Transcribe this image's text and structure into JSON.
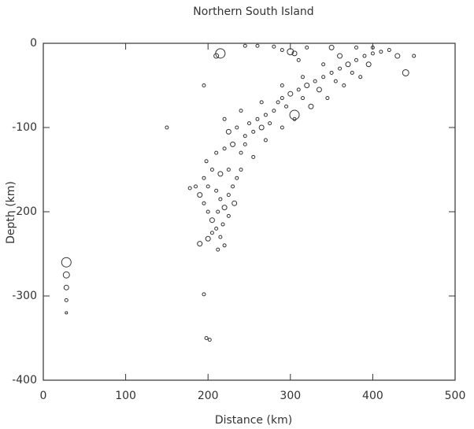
{
  "chart_data": {
    "type": "scatter",
    "title": "Northern South Island",
    "xlabel": "Distance (km)",
    "ylabel": "Depth (km)",
    "xlim": [
      0,
      500
    ],
    "ylim": [
      -400,
      0
    ],
    "xticks": [
      0,
      100,
      200,
      300,
      400,
      500
    ],
    "yticks": [
      0,
      -100,
      -200,
      -300,
      -400
    ],
    "series": [
      {
        "color": "#333333",
        "x": [
          185,
          190,
          195,
          200,
          205,
          210,
          215,
          220,
          195,
          200,
          210,
          215,
          220,
          225,
          218,
          205,
          200,
          212,
          225,
          230,
          235,
          225,
          215,
          205,
          198,
          210,
          220,
          230,
          240,
          245,
          235,
          225,
          250,
          260,
          255,
          245,
          265,
          270,
          280,
          275,
          285,
          290,
          300,
          295,
          310,
          320,
          315,
          330,
          340,
          335,
          350,
          360,
          355,
          370,
          380,
          375,
          390,
          400,
          395,
          410,
          420,
          430,
          450,
          385,
          365,
          345,
          325,
          305,
          290,
          270,
          255,
          240,
          232,
          212,
          190,
          178,
          220,
          240,
          265,
          290,
          315,
          340,
          360,
          310,
          320,
          350,
          380,
          400,
          245,
          260,
          280,
          290,
          300,
          305,
          210,
          215,
          305,
          440,
          150,
          195,
          28,
          28,
          28,
          28,
          28,
          195,
          198,
          202
        ],
        "values": [
          -170,
          -180,
          -190,
          -200,
          -210,
          -220,
          -230,
          -240,
          -160,
          -170,
          -175,
          -185,
          -195,
          -205,
          -215,
          -225,
          -232,
          -200,
          -180,
          -170,
          -160,
          -150,
          -155,
          -150,
          -140,
          -130,
          -125,
          -120,
          -130,
          -110,
          -100,
          -105,
          -95,
          -90,
          -105,
          -120,
          -100,
          -85,
          -80,
          -95,
          -70,
          -65,
          -60,
          -75,
          -55,
          -50,
          -65,
          -45,
          -40,
          -55,
          -35,
          -30,
          -45,
          -25,
          -20,
          -35,
          -15,
          -12,
          -25,
          -10,
          -8,
          -15,
          -15,
          -40,
          -50,
          -65,
          -75,
          -90,
          -100,
          -115,
          -135,
          -150,
          -190,
          -245,
          -238,
          -172,
          -90,
          -80,
          -70,
          -50,
          -40,
          -25,
          -15,
          -20,
          -5,
          -5,
          -5,
          -5,
          -3,
          -3,
          -4,
          -8,
          -10,
          -12,
          -15,
          -12,
          -85,
          -35,
          -100,
          -50,
          -260,
          -275,
          -290,
          -305,
          -320,
          -298,
          -350,
          -352
        ],
        "sizes": [
          2,
          3,
          2,
          2,
          3,
          2,
          2,
          2,
          2,
          2,
          2,
          2,
          3,
          2,
          2,
          2,
          3,
          2,
          2,
          2,
          2,
          2,
          3,
          2,
          2,
          2,
          2,
          3,
          2,
          2,
          2,
          3,
          2,
          2,
          2,
          2,
          3,
          2,
          2,
          2,
          2,
          2,
          3,
          2,
          2,
          3,
          2,
          2,
          2,
          3,
          2,
          2,
          2,
          3,
          2,
          2,
          2,
          2,
          3,
          2,
          2,
          3,
          2,
          2,
          2,
          2,
          3,
          2,
          2,
          2,
          2,
          2,
          3,
          2,
          3,
          2,
          2,
          2,
          2,
          2,
          2,
          2,
          3,
          2,
          2,
          3,
          2,
          2,
          2,
          2,
          2,
          2,
          4,
          3,
          3,
          6,
          6,
          4,
          2,
          2,
          6,
          4,
          3,
          2,
          1.5,
          2,
          2,
          2
        ]
      }
    ]
  }
}
